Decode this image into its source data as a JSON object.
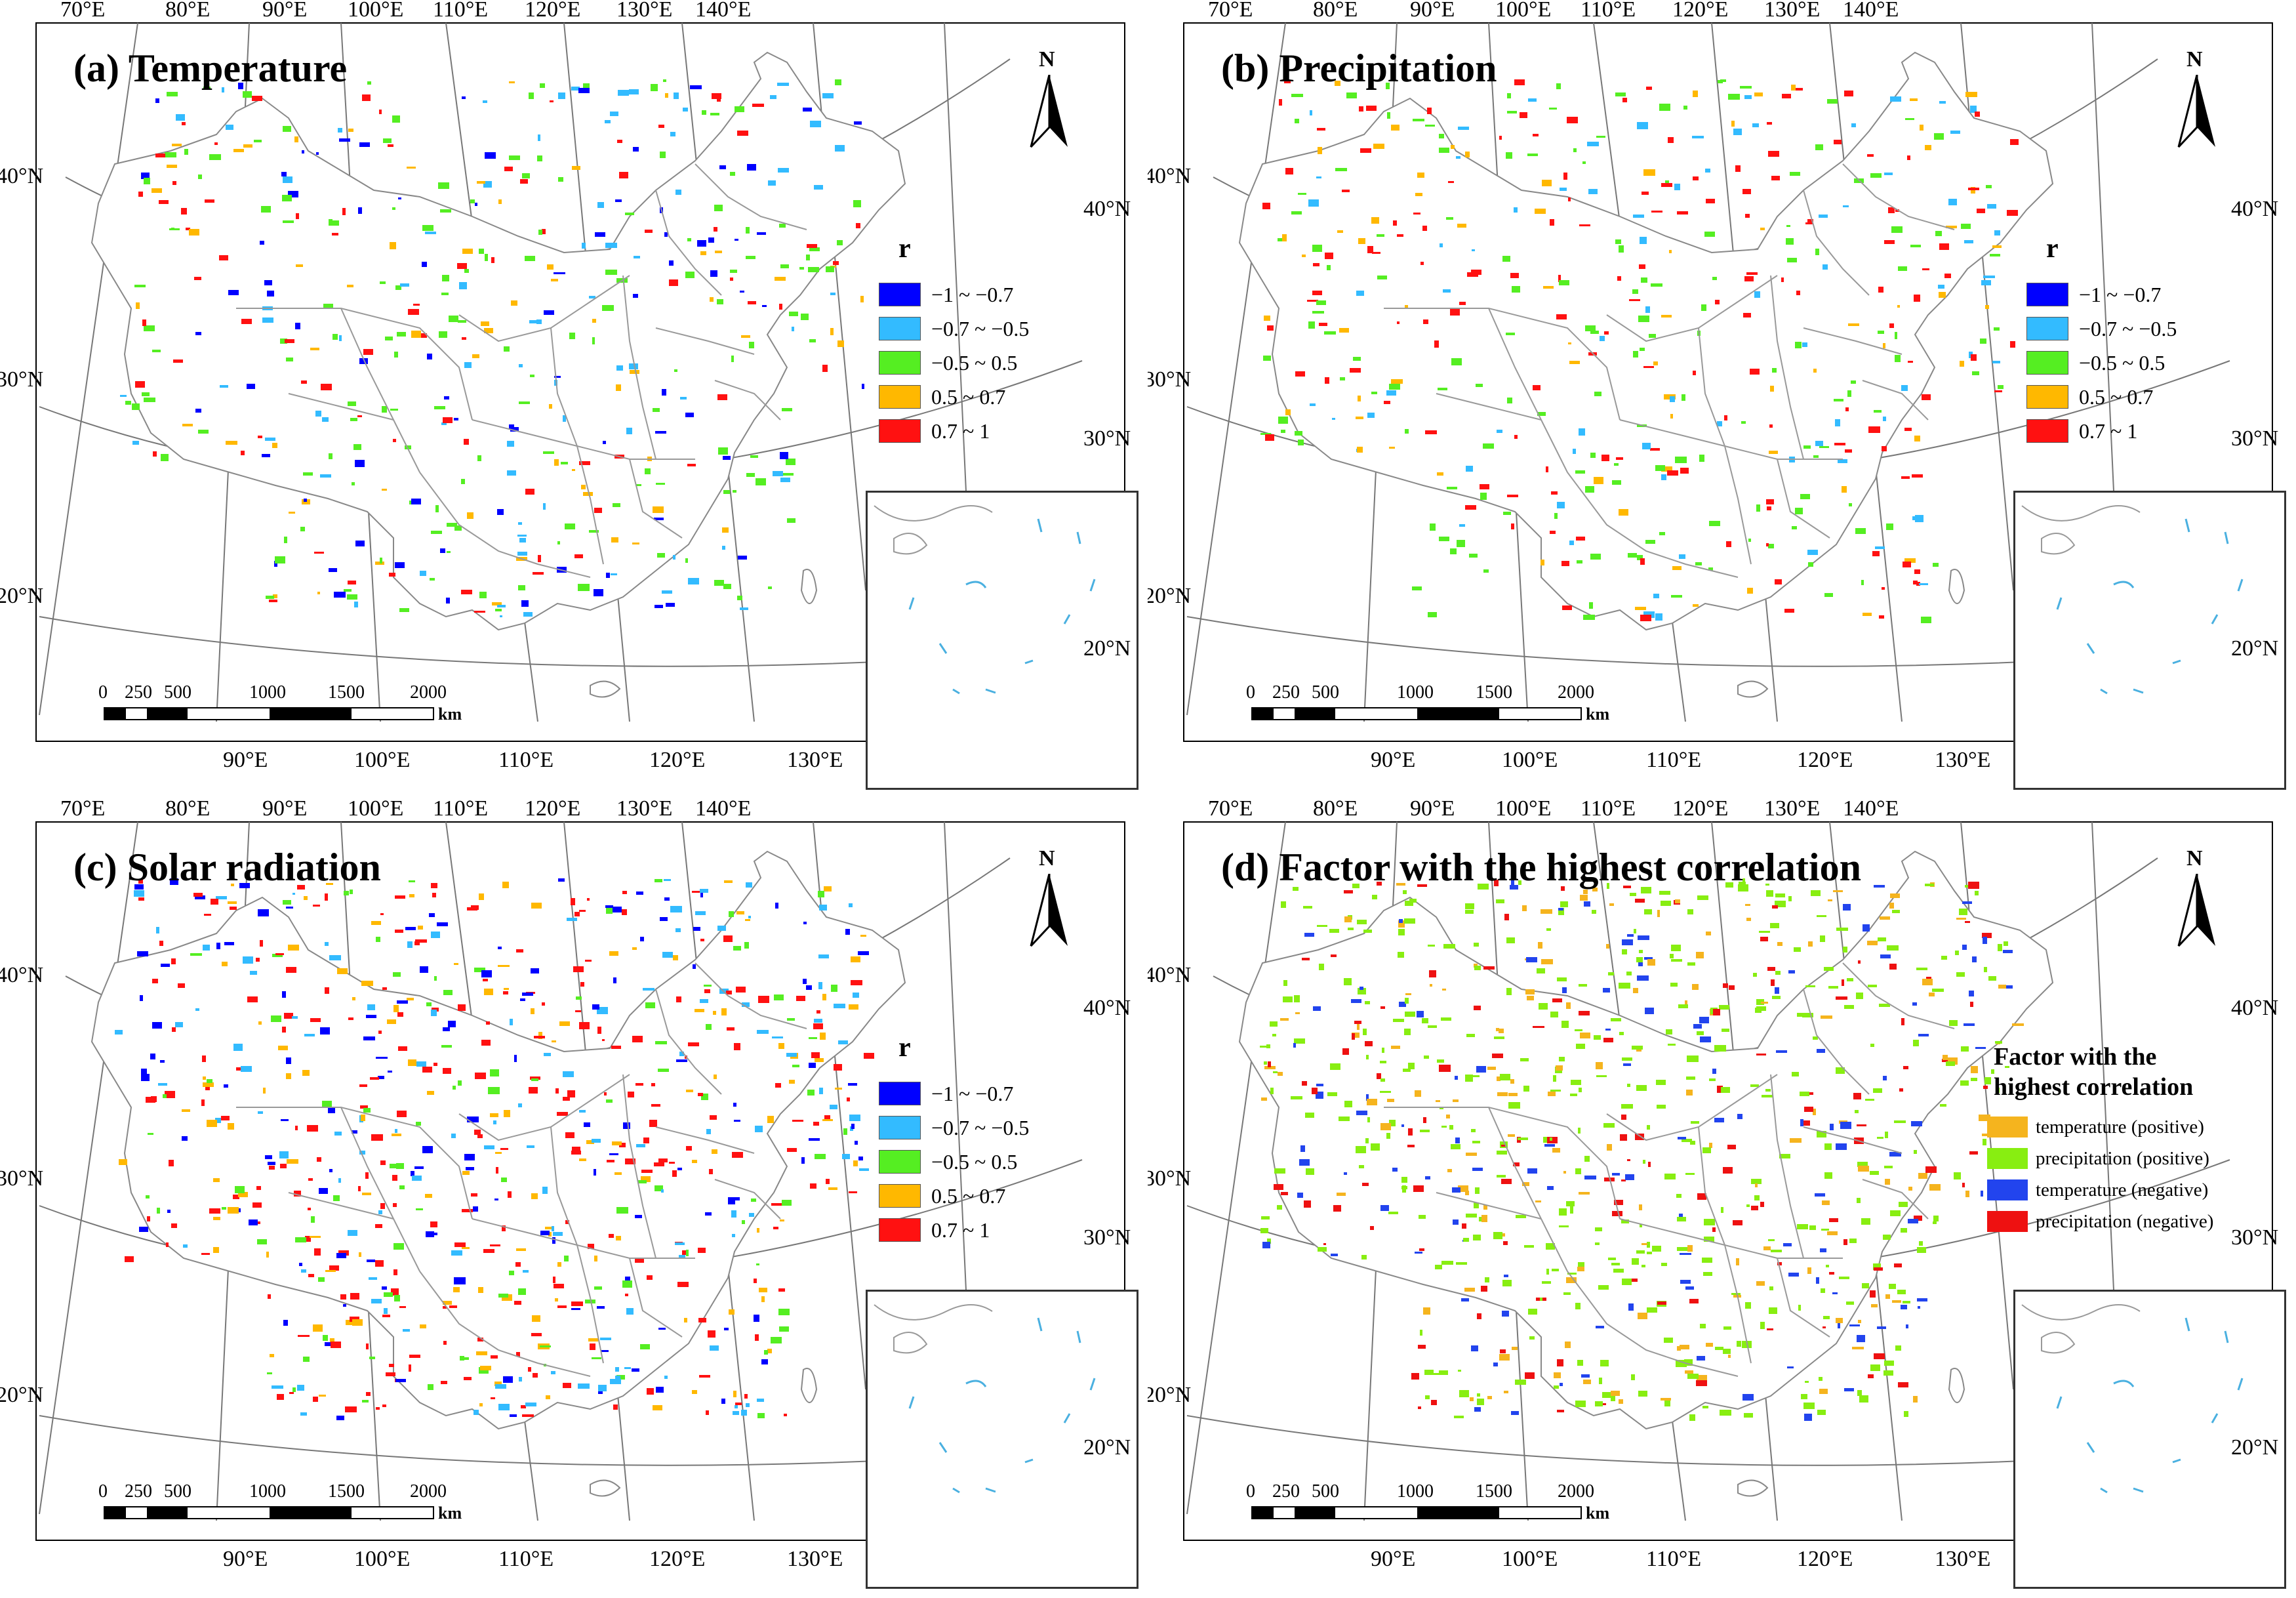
{
  "panels": [
    {
      "title": "(a) Temperature",
      "legend_title": "r"
    },
    {
      "title": "(b) Precipitation",
      "legend_title": "r"
    },
    {
      "title": "(c) Solar radiation",
      "legend_title": "r"
    },
    {
      "title": "(d) Factor with the highest correlation",
      "legend_title": "Factor with the highest correlation"
    }
  ],
  "legend_r": [
    {
      "label": "−1 ~ −0.7",
      "color": "#0000ff"
    },
    {
      "label": "−0.7 ~ −0.5",
      "color": "#33bbff"
    },
    {
      "label": "−0.5 ~ 0.5",
      "color": "#55ee22"
    },
    {
      "label": "0.5 ~ 0.7",
      "color": "#ffb800"
    },
    {
      "label": "0.7 ~ 1",
      "color": "#ff1111"
    }
  ],
  "legend_factor": {
    "title_line1": "Factor with the",
    "title_line2": "highest correlation",
    "items": [
      {
        "label": "temperature (positive)",
        "color": "#f5b41e"
      },
      {
        "label": "precipitation (positive)",
        "color": "#88ee11"
      },
      {
        "label": "temperature (negative)",
        "color": "#2244ee"
      },
      {
        "label": "precipitation (negative)",
        "color": "#ee1111"
      }
    ]
  },
  "top_ticks": [
    "70°E",
    "80°E",
    "90°E",
    "100°E",
    "110°E",
    "120°E",
    "130°E",
    "140°E"
  ],
  "bottom_ticks": [
    "90°E",
    "100°E",
    "110°E",
    "120°E",
    "130°E"
  ],
  "left_ticks": [
    "40°N",
    "30°N",
    "20°N"
  ],
  "right_ticks": [
    "40°N",
    "30°N",
    "20°N"
  ],
  "north_label": "N",
  "scale_bar": {
    "labels": [
      "0",
      "250",
      "500",
      "1000",
      "1500",
      "2000"
    ],
    "unit": "km"
  }
}
